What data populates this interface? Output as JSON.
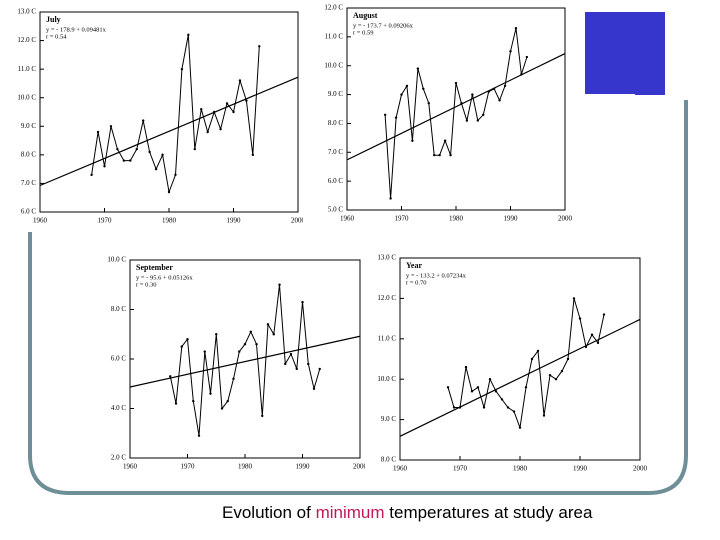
{
  "chart_data": [
    {
      "type": "line",
      "title": "July",
      "annotations": [
        "y = - 178.9 + 0.09481x",
        "r = 0.54"
      ],
      "trend": {
        "intercept": -178.9,
        "slope": 0.09481
      },
      "color": "#000000",
      "x": [
        1968,
        1969,
        1970,
        1971,
        1972,
        1973,
        1974,
        1975,
        1976,
        1977,
        1978,
        1979,
        1980,
        1981,
        1982,
        1983,
        1984,
        1985,
        1986,
        1987,
        1988,
        1989,
        1990,
        1991,
        1992,
        1993,
        1994
      ],
      "values": [
        7.3,
        8.8,
        7.6,
        9.0,
        8.2,
        7.8,
        7.8,
        8.2,
        9.2,
        8.1,
        7.5,
        8.0,
        6.7,
        7.3,
        11.0,
        12.2,
        8.2,
        9.6,
        8.8,
        9.5,
        8.9,
        9.8,
        9.5,
        10.6,
        9.9,
        8.0,
        11.8
      ],
      "xlim": [
        1960,
        2000
      ],
      "xticks": [
        1960,
        1970,
        1980,
        1990,
        2000
      ],
      "ylim": [
        6,
        13
      ],
      "yticks": [
        {
          "value": 6,
          "label": "6.0 C"
        },
        {
          "value": 7,
          "label": "7.0 C"
        },
        {
          "value": 8,
          "label": "8.0 C"
        },
        {
          "value": 9,
          "label": "9.0 C"
        },
        {
          "value": 10,
          "label": "10.0 C"
        },
        {
          "value": 11,
          "label": "11.0 C"
        },
        {
          "value": 12,
          "label": "12.0 C"
        },
        {
          "value": 13,
          "label": "13.0 C"
        }
      ]
    },
    {
      "type": "line",
      "title": "August",
      "annotations": [
        "y = - 173.7 + 0.09206x",
        "r = 0.59"
      ],
      "trend": {
        "intercept": -173.7,
        "slope": 0.09206
      },
      "color": "#000000",
      "x": [
        1967,
        1968,
        1969,
        1970,
        1971,
        1972,
        1973,
        1974,
        1975,
        1976,
        1977,
        1978,
        1979,
        1980,
        1981,
        1982,
        1983,
        1984,
        1985,
        1986,
        1987,
        1988,
        1989,
        1990,
        1991,
        1992,
        1993
      ],
      "values": [
        8.3,
        5.4,
        8.2,
        9.0,
        9.3,
        7.4,
        9.9,
        9.2,
        8.7,
        6.9,
        6.9,
        7.4,
        6.9,
        9.4,
        8.7,
        8.1,
        9.0,
        8.1,
        8.3,
        9.1,
        9.2,
        8.8,
        9.3,
        10.5,
        11.3,
        9.7,
        10.3
      ],
      "xlim": [
        1960,
        2000
      ],
      "xticks": [
        1960,
        1970,
        1980,
        1990,
        2000
      ],
      "ylim": [
        5,
        12
      ],
      "yticks": [
        {
          "value": 5,
          "label": "5.0 C"
        },
        {
          "value": 6,
          "label": "6.0 C"
        },
        {
          "value": 7,
          "label": "7.0 C"
        },
        {
          "value": 8,
          "label": "8.0 C"
        },
        {
          "value": 9,
          "label": "9.0 C"
        },
        {
          "value": 10,
          "label": "10.0 C"
        },
        {
          "value": 11,
          "label": "11.0 C"
        },
        {
          "value": 12,
          "label": "12.0 C"
        }
      ]
    },
    {
      "type": "line",
      "title": "September",
      "annotations": [
        "y = - 95.6 + 0.05126x",
        "r = 0.30"
      ],
      "trend": {
        "intercept": -95.6,
        "slope": 0.05126
      },
      "color": "#000000",
      "x": [
        1967,
        1968,
        1969,
        1970,
        1971,
        1972,
        1973,
        1974,
        1975,
        1976,
        1977,
        1978,
        1979,
        1980,
        1981,
        1982,
        1983,
        1984,
        1985,
        1986,
        1987,
        1988,
        1989,
        1990,
        1991,
        1992,
        1993
      ],
      "values": [
        5.3,
        4.2,
        6.5,
        6.8,
        4.3,
        2.9,
        6.3,
        4.6,
        7.0,
        4.0,
        4.3,
        5.2,
        6.3,
        6.6,
        7.1,
        6.6,
        3.7,
        7.4,
        7.0,
        9.0,
        5.8,
        6.2,
        5.6,
        8.3,
        5.8,
        4.8,
        5.6
      ],
      "xlim": [
        1960,
        2000
      ],
      "xticks": [
        1960,
        1970,
        1980,
        1990,
        2000
      ],
      "ylim": [
        2,
        10
      ],
      "yticks": [
        {
          "value": 2,
          "label": "2.0 C"
        },
        {
          "value": 4,
          "label": "4.0 C"
        },
        {
          "value": 6,
          "label": "6.0 C"
        },
        {
          "value": 8,
          "label": "8.0 C"
        },
        {
          "value": 10,
          "label": "10.0 C"
        }
      ]
    },
    {
      "type": "line",
      "title": "Year",
      "annotations": [
        "y = - 133.2 + 0.07234x",
        "r = 0.70"
      ],
      "trend": {
        "intercept": -133.2,
        "slope": 0.07234
      },
      "color": "#000000",
      "x": [
        1968,
        1969,
        1970,
        1971,
        1972,
        1973,
        1974,
        1975,
        1976,
        1977,
        1978,
        1979,
        1980,
        1981,
        1982,
        1983,
        1984,
        1985,
        1986,
        1987,
        1988,
        1989,
        1990,
        1991,
        1992,
        1993,
        1994
      ],
      "values": [
        9.8,
        9.3,
        9.3,
        10.3,
        9.7,
        9.8,
        9.3,
        10.0,
        9.7,
        9.5,
        9.3,
        9.2,
        8.8,
        9.8,
        10.5,
        10.7,
        9.1,
        10.1,
        10.0,
        10.2,
        10.5,
        12.0,
        11.5,
        10.8,
        11.1,
        10.9,
        11.6
      ],
      "xlim": [
        1960,
        2000
      ],
      "xticks": [
        1960,
        1970,
        1980,
        1990,
        2000
      ],
      "ylim": [
        8,
        13
      ],
      "yticks": [
        {
          "value": 8,
          "label": "8.0 C"
        },
        {
          "value": 9,
          "label": "9.0 C"
        },
        {
          "value": 10,
          "label": "10.0 C"
        },
        {
          "value": 11,
          "label": "11.0 C"
        },
        {
          "value": 12,
          "label": "12.0 C"
        },
        {
          "value": 13,
          "label": "13.0 C"
        }
      ]
    }
  ],
  "caption": {
    "before": "Evolution of",
    "highlight": "minimum",
    "after": "temperatures at study area"
  }
}
